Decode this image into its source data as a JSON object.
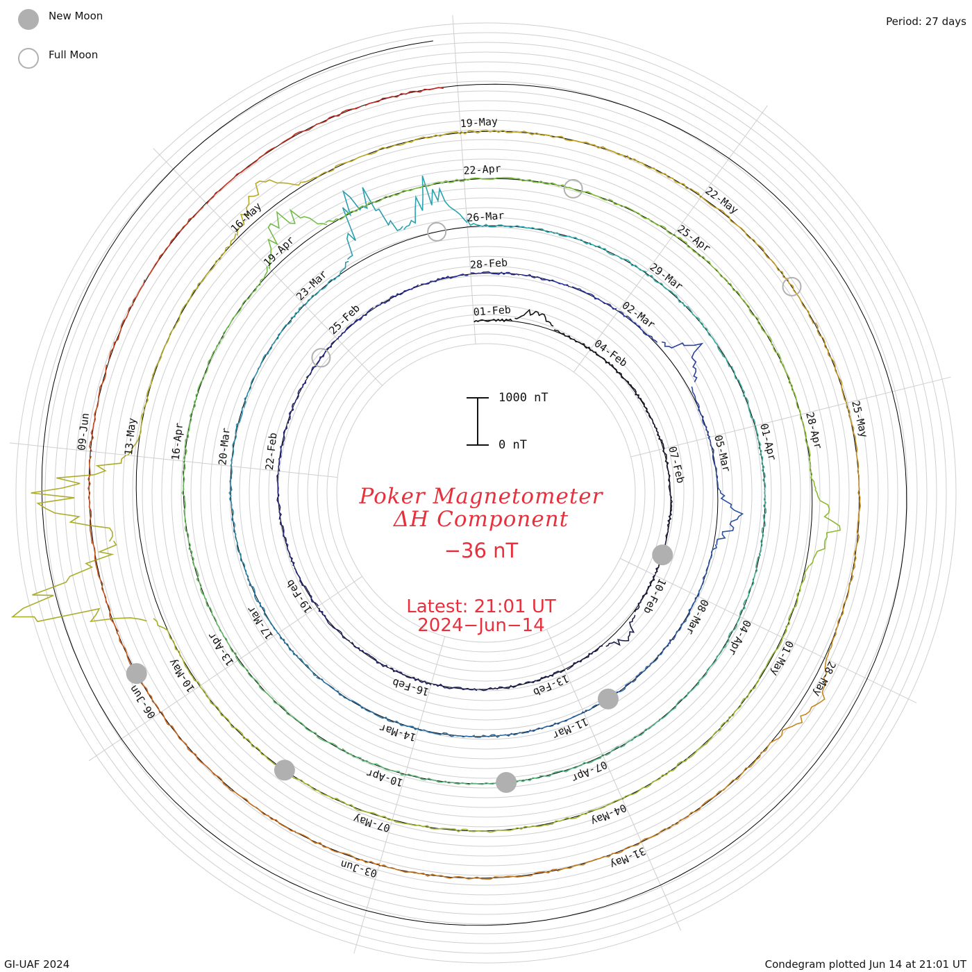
{
  "legend": {
    "new_moon_label": "New Moon",
    "full_moon_label": "Full Moon",
    "new_moon_color": "#b0b0b0",
    "full_moon_color": "#b0b0b0"
  },
  "period_label": "Period: 27 days",
  "footer_left": "GI-UAF 2024",
  "footer_right": "Condegram plotted Jun 14 at 21:01 UT",
  "title_line1": "Poker Magnetometer",
  "title_line2": "ΔH Component",
  "current_value": "−36 nT",
  "latest_line1": "Latest: 21:01 UT",
  "latest_line2": "2024−Jun−14",
  "scale_bar": {
    "top_label": "1000 nT",
    "bottom_label": "0 nT"
  },
  "chart_data": {
    "type": "line",
    "layout": "spiral condegram",
    "period_days": 27,
    "start_date": "2024-02-01",
    "end_date": "2024-06-14",
    "value_unit": "nT",
    "scale_bar_nT": [
      0,
      1000
    ],
    "current_value_nT": -36,
    "rotations": [
      {
        "name": "01-Feb to 27-Feb",
        "color": "#111111"
      },
      {
        "name": "28-Feb to 25-Mar",
        "color": "#2a2f9a"
      },
      {
        "name": "26-Mar to 21-Apr",
        "color": "#2aa7b0"
      },
      {
        "name": "22-Apr to 18-May",
        "color": "#7cbf3a"
      },
      {
        "name": "19-May to 14-Jun",
        "color": "#c9a020"
      }
    ],
    "date_labels": [
      "01-Feb",
      "04-Feb",
      "07-Feb",
      "10-Feb",
      "13-Feb",
      "16-Feb",
      "19-Feb",
      "22-Feb",
      "25-Feb",
      "28-Feb",
      "02-Mar",
      "05-Mar",
      "08-Mar",
      "11-Mar",
      "14-Mar",
      "17-Mar",
      "20-Mar",
      "23-Mar",
      "26-Mar",
      "29-Mar",
      "01-Apr",
      "04-Apr",
      "07-Apr",
      "10-Apr",
      "13-Apr",
      "16-Apr",
      "19-Apr",
      "22-Apr",
      "25-Apr",
      "28-Apr",
      "01-May",
      "04-May",
      "07-May",
      "10-May",
      "13-May",
      "16-May",
      "19-May",
      "22-May",
      "25-May",
      "28-May",
      "31-May",
      "03-Jun",
      "06-Jun",
      "09-Jun"
    ],
    "new_moons": [
      "2024-02-09",
      "2024-03-10",
      "2024-04-08",
      "2024-05-08",
      "2024-06-06"
    ],
    "full_moons": [
      "2024-02-24",
      "2024-03-25",
      "2024-04-23",
      "2024-05-23"
    ],
    "disturbances_nT": [
      {
        "date": "2024-02-02",
        "value": -300
      },
      {
        "date": "2024-02-11",
        "value": -250
      },
      {
        "date": "2024-03-03",
        "value": -650
      },
      {
        "date": "2024-03-06",
        "value": -400
      },
      {
        "date": "2024-03-24",
        "value": -1200
      },
      {
        "date": "2024-03-25",
        "value": -900
      },
      {
        "date": "2024-04-19",
        "value": -700
      },
      {
        "date": "2024-04-29",
        "value": -550
      },
      {
        "date": "2024-05-11",
        "value": -2200
      },
      {
        "date": "2024-05-12",
        "value": -1900
      },
      {
        "date": "2024-05-16",
        "value": -500
      },
      {
        "date": "2024-05-28",
        "value": -350
      }
    ]
  }
}
